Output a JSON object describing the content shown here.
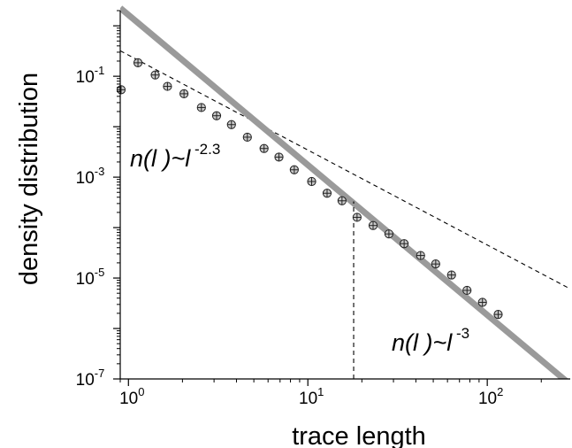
{
  "chart_data": {
    "type": "scatter",
    "x_scale": "log",
    "y_scale": "log",
    "xlabel": "trace length",
    "ylabel": "density distribution",
    "xlim": [
      0.9,
      290
    ],
    "ylim": [
      1e-07,
      2.0
    ],
    "x_ticks": [
      {
        "value": 1,
        "base": "10",
        "exp": "0"
      },
      {
        "value": 10,
        "base": "10",
        "exp": "1"
      },
      {
        "value": 100,
        "base": "10",
        "exp": "2"
      }
    ],
    "y_ticks": [
      {
        "value": 1e-07,
        "base": "10",
        "exp": "-7"
      },
      {
        "value": 1e-05,
        "base": "10",
        "exp": "-5"
      },
      {
        "value": 0.001,
        "base": "10",
        "exp": "-3"
      },
      {
        "value": 0.1,
        "base": "10",
        "exp": "-1"
      }
    ],
    "series": [
      {
        "marker": "circle-plus",
        "x": [
          0.91,
          1.13,
          1.41,
          1.65,
          2.04,
          2.55,
          3.1,
          3.75,
          4.6,
          5.7,
          6.9,
          8.4,
          10.5,
          12.8,
          15.5,
          18.8,
          23.1,
          28.3,
          34.4,
          42.5,
          51.6,
          63.2,
          77.1,
          94.0,
          115.0
        ],
        "y": [
          0.054,
          0.185,
          0.106,
          0.063,
          0.045,
          0.024,
          0.0165,
          0.011,
          0.0062,
          0.0037,
          0.0025,
          0.0014,
          0.00082,
          0.00048,
          0.00034,
          0.00016,
          0.00011,
          7.5e-05,
          4.8e-05,
          2.8e-05,
          1.9e-05,
          1.15e-05,
          5.7e-06,
          3.3e-06,
          1.9e-06
        ]
      }
    ],
    "fits": [
      {
        "style": "dashed",
        "exponent": -2.3,
        "x": [
          0.9,
          290
        ],
        "y": [
          0.32,
          6.1e-06
        ]
      },
      {
        "style": "solid-gray",
        "exponent": -3,
        "x": [
          0.9,
          290
        ],
        "y": [
          2.25,
          7.8e-08
        ]
      }
    ],
    "crossover": {
      "x": 18.0
    },
    "annotations": [
      {
        "prefix": "n(",
        "var": "l",
        "mid": " )~",
        "var2": "l",
        "exponent": " -2.3"
      },
      {
        "prefix": "n(",
        "var": "l",
        "mid": " )~",
        "var2": "l",
        "exponent": " -3"
      }
    ]
  },
  "colors": {
    "marker_fill": "#c8c8c8",
    "marker_stroke": "#222222",
    "fit_gray": "#9a9a9a",
    "axis": "#000000"
  }
}
